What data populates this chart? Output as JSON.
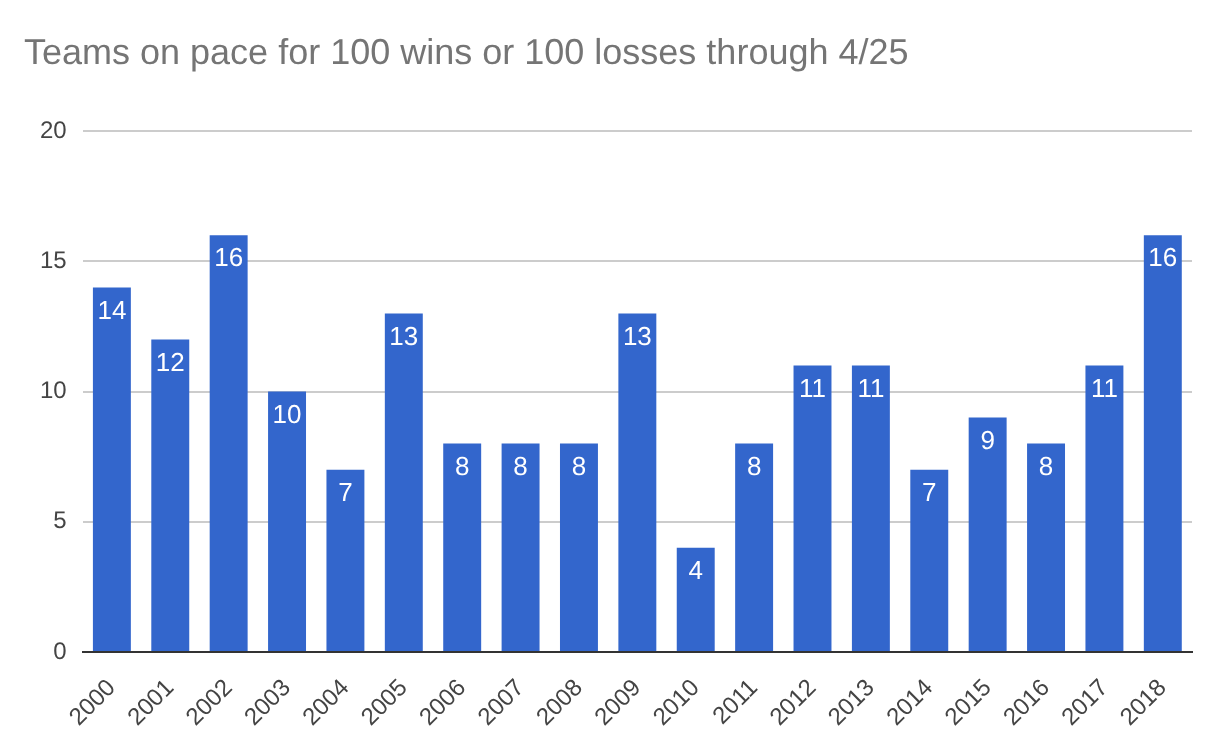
{
  "chart_data": {
    "type": "bar",
    "title": "Teams on pace for 100 wins or 100 losses through 4/25",
    "categories": [
      "2000",
      "2001",
      "2002",
      "2003",
      "2004",
      "2005",
      "2006",
      "2007",
      "2008",
      "2009",
      "2010",
      "2011",
      "2012",
      "2013",
      "2014",
      "2015",
      "2016",
      "2017",
      "2018"
    ],
    "values": [
      14,
      12,
      16,
      10,
      7,
      13,
      8,
      8,
      8,
      13,
      4,
      8,
      11,
      11,
      7,
      9,
      8,
      11,
      16
    ],
    "color": "#3366cc",
    "ylim": [
      0,
      20
    ],
    "yticks": [
      0,
      5,
      10,
      15,
      20
    ],
    "grid": "y",
    "data_labels": true
  }
}
